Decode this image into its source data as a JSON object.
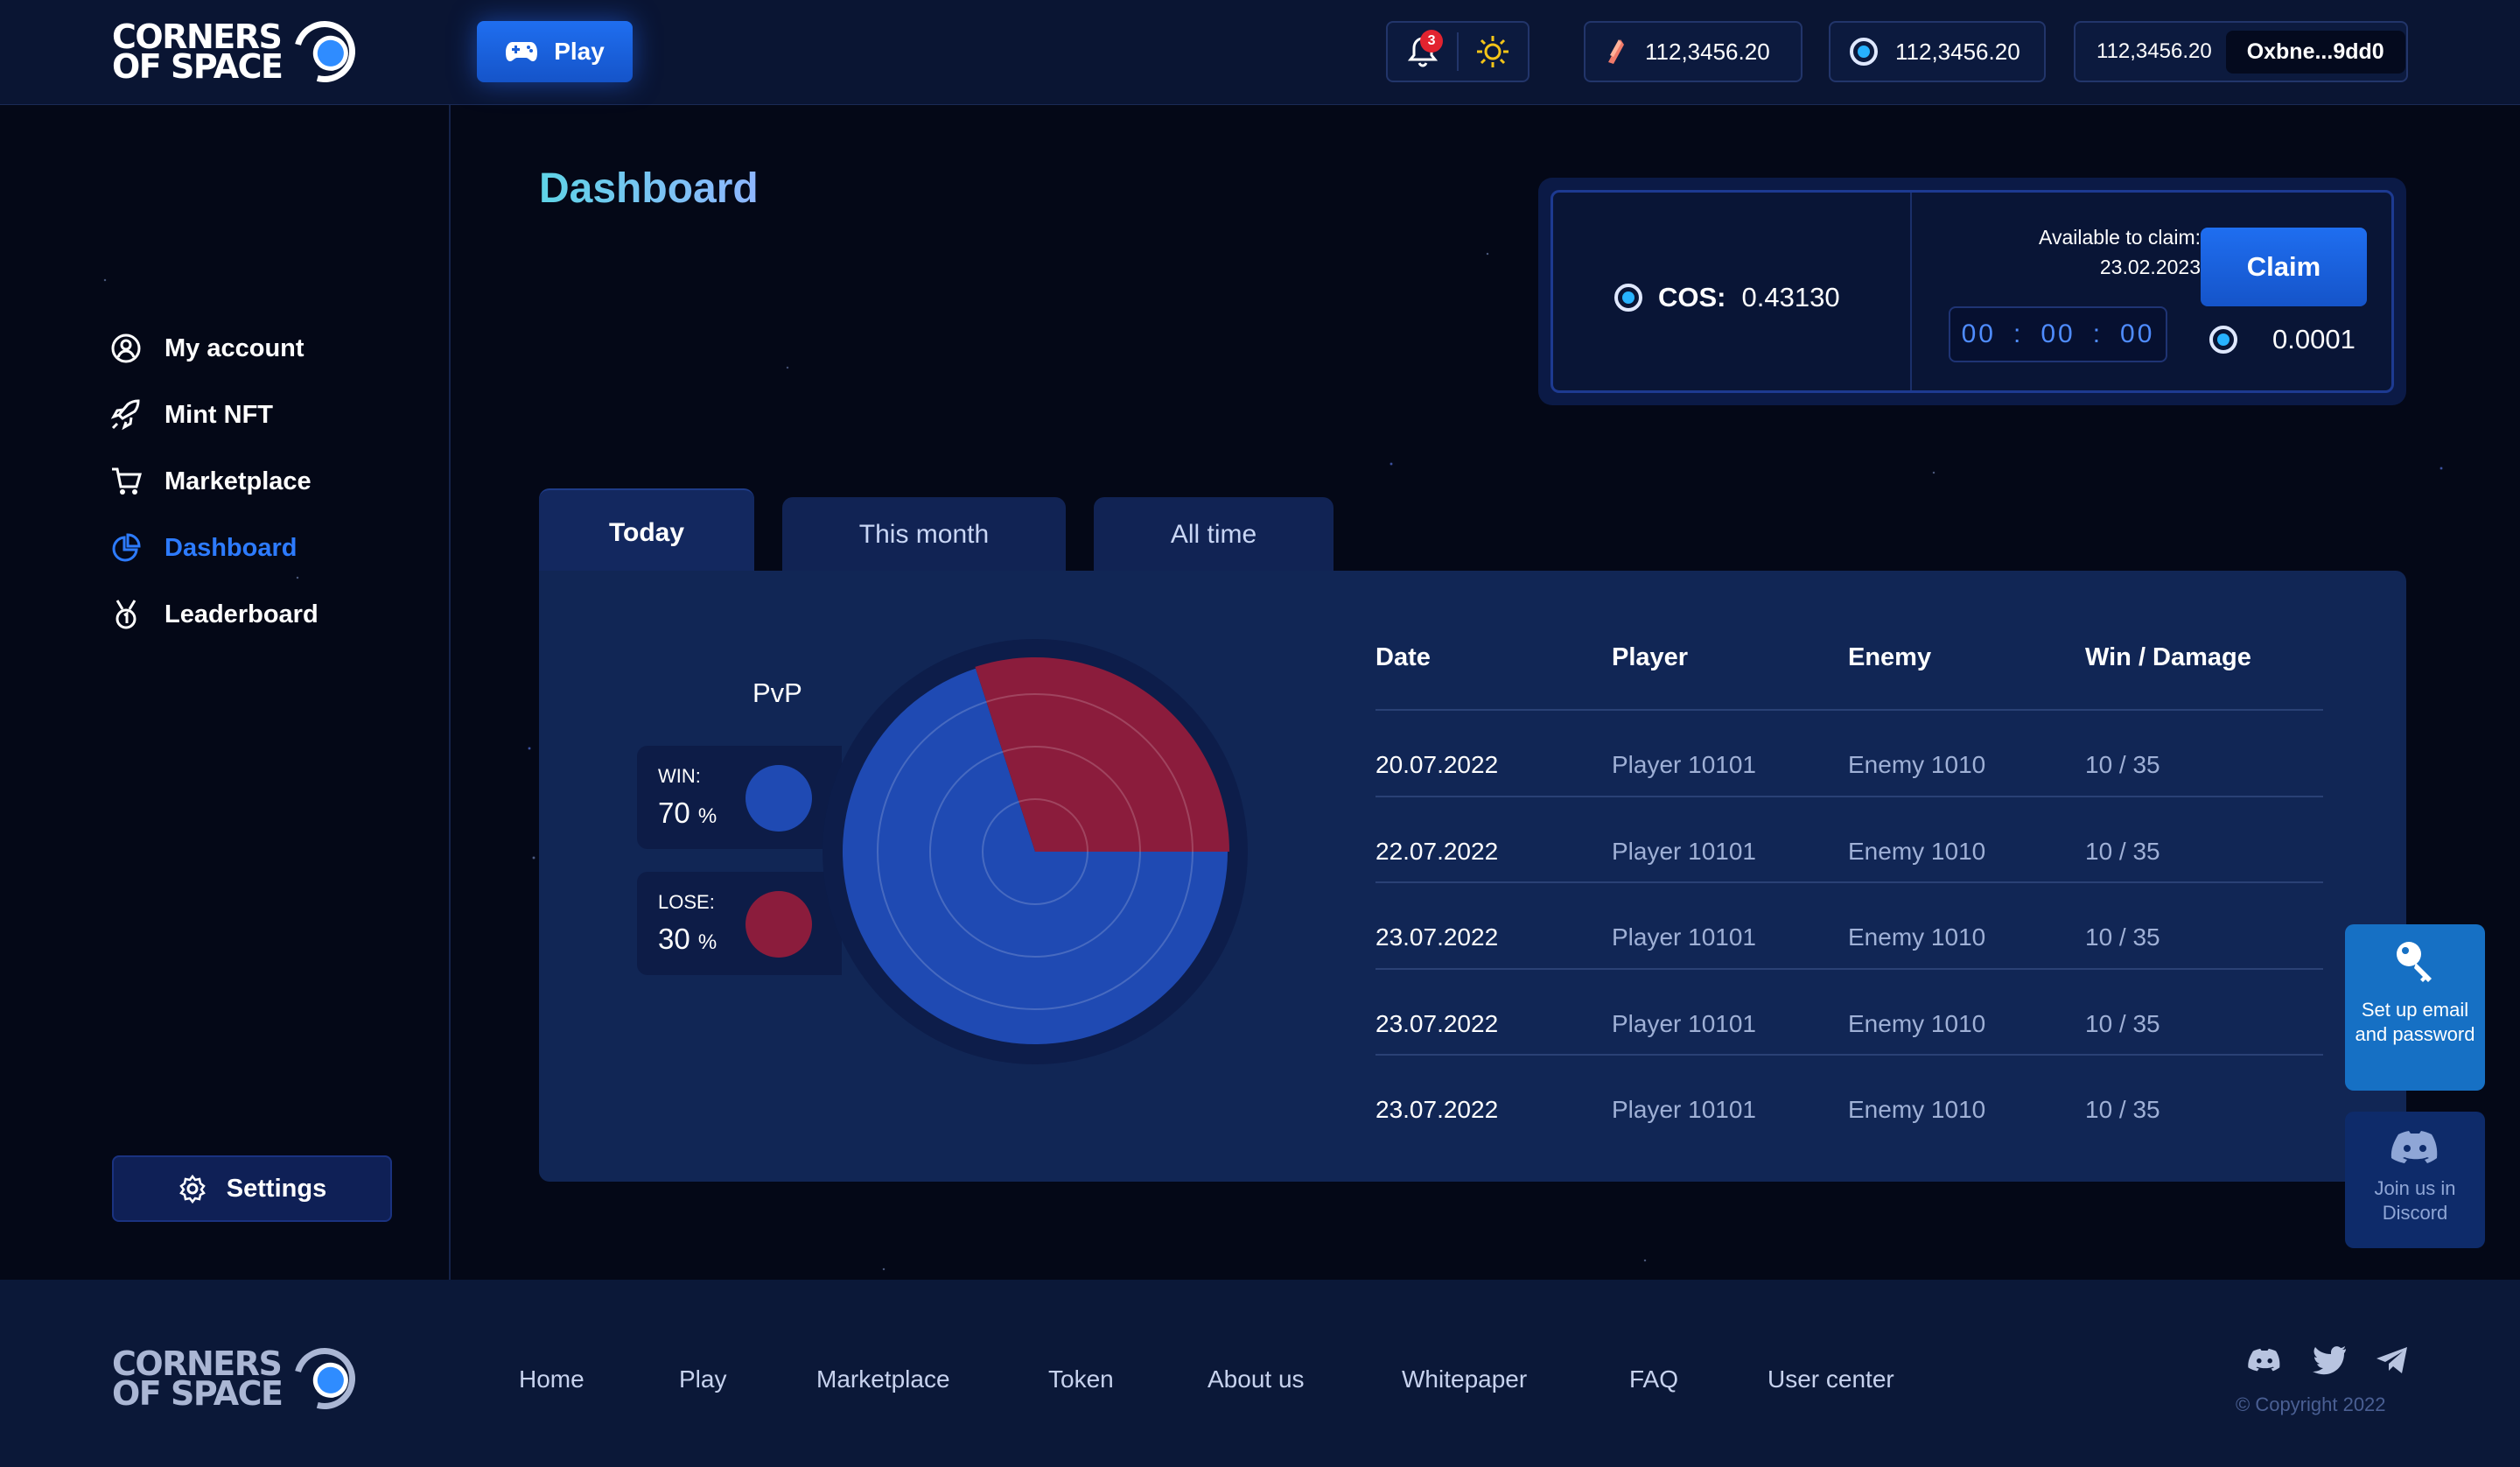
{
  "brand": {
    "line1": "CORNERS",
    "line2": "OF SPACE"
  },
  "header": {
    "play_label": "Play",
    "notification_count": "3",
    "balance_1": "112,3456.20",
    "balance_2": "112,3456.20",
    "balance_3": "112,3456.20",
    "wallet_address": "Oxbne...9dd0"
  },
  "sidebar": {
    "items": [
      {
        "label": "My account",
        "icon": "user-icon"
      },
      {
        "label": "Mint NFT",
        "icon": "rocket-icon"
      },
      {
        "label": "Marketplace",
        "icon": "cart-icon"
      },
      {
        "label": "Dashboard",
        "icon": "pie-icon",
        "active": true
      },
      {
        "label": "Leaderboard",
        "icon": "medal-icon"
      }
    ],
    "settings_label": "Settings"
  },
  "main": {
    "title": "Dashboard",
    "claim": {
      "cos_label": "COS:",
      "cos_value": "0.43130",
      "available_label": "Available to claim:",
      "available_date": "23.02.2023",
      "timer": [
        "00",
        "00",
        "00"
      ],
      "timer_sep": ":",
      "claim_label": "Claim",
      "claim_amount": "0.0001"
    },
    "tabs": [
      {
        "label": "Today",
        "active": true
      },
      {
        "label": "This month"
      },
      {
        "label": "All time"
      }
    ],
    "pvp": {
      "title": "PvP",
      "win_label": "WIN:",
      "win_value": "70",
      "lose_label": "LOSE:",
      "lose_value": "30",
      "unit": "%",
      "win_color": "#1f4ab3",
      "lose_color": "#8b1c3c"
    },
    "table": {
      "headers": [
        "Date",
        "Player",
        "Enemy",
        "Win / Damage"
      ],
      "rows": [
        [
          "20.07.2022",
          "Player 10101",
          "Enemy 1010",
          "10 / 35"
        ],
        [
          "22.07.2022",
          "Player 10101",
          "Enemy 1010",
          "10 / 35"
        ],
        [
          "23.07.2022",
          "Player 10101",
          "Enemy 1010",
          "10 / 35"
        ],
        [
          "23.07.2022",
          "Player 10101",
          "Enemy 1010",
          "10 / 35"
        ],
        [
          "23.07.2022",
          "Player 10101",
          "Enemy 1010",
          "10 / 35"
        ]
      ]
    }
  },
  "floating": {
    "setup_label": "Set up email and password",
    "discord_label": "Join us in Discord"
  },
  "footer": {
    "links": [
      "Home",
      "Play",
      "Marketplace",
      "Token",
      "About us",
      "Whitepaper",
      "FAQ",
      "User center"
    ],
    "copyright": "© Copyright 2022"
  }
}
